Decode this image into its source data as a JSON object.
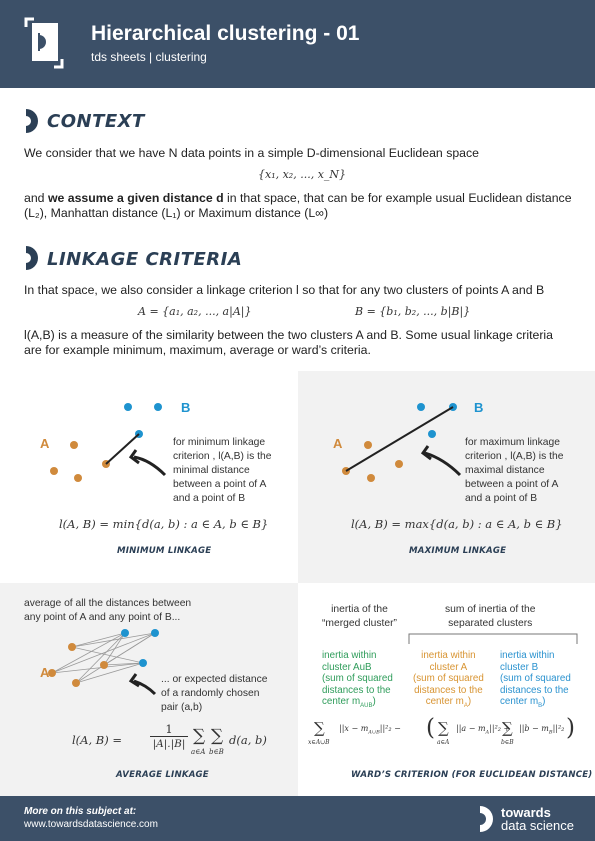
{
  "header": {
    "title": "Hierarchical clustering - 01",
    "subtitle": "tds sheets | clustering"
  },
  "context": {
    "heading": "CONTEXT",
    "line1": "We consider that we have N data points in a simple D-dimensional Euclidean space",
    "formula": "{x₁, x₂, ..., x_N}",
    "line2_pre": "and ",
    "line2_bold": "we assume a given distance d",
    "line2_post": " in that space, that can be for example usual Euclidean distance",
    "line3": "(L₂), Manhattan distance (L₁) or Maximum distance (L∞)"
  },
  "linkage": {
    "heading": "LINKAGE CRITERIA",
    "line1": "In that space, we also consider a linkage criterion l so that for any two clusters of points A and B",
    "set_a": "A = {a₁, a₂, ..., a|A|}",
    "set_b": "B = {b₁, b₂, ..., b|B|}",
    "line2": "l(A,B) is a measure of the similarity between the two clusters A and B. Some usual linkage criteria",
    "line3": "are for example minimum, maximum, average or ward’s criteria."
  },
  "panels": {
    "min": {
      "label_a": "A",
      "label_b": "B",
      "note": [
        "for minimum linkage",
        "criterion , l(A,B) is the",
        "minimal distance",
        "between a point of A",
        "and a point of B"
      ],
      "formula": "l(A, B) = min{d(a, b) : a ∈ A, b ∈ B}",
      "caption": "MINIMUM LINKAGE"
    },
    "max": {
      "label_a": "A",
      "label_b": "B",
      "note": [
        "for maximum linkage",
        "criterion , l(A,B) is the",
        "maximal distance",
        "between a point of A",
        "and a point of B"
      ],
      "formula": "l(A, B) = max{d(a, b) : a ∈ A, b ∈ B}",
      "caption": "MAXIMUM LINKAGE"
    },
    "avg": {
      "label_a": "A",
      "top_note": [
        "average of all the distances between",
        "any point of A and any point of B..."
      ],
      "side_note": [
        "... or expected distance",
        "of a randomly chosen",
        "pair (a,b)"
      ],
      "formula_lhs": "l(A, B) =",
      "formula_num": "1",
      "formula_den": "|A|.|B|",
      "formula_sum1": "∑",
      "formula_sub1": "a∈A",
      "formula_sum2": "∑",
      "formula_sub2": "b∈B",
      "formula_rhs": "d(a, b)",
      "caption": "AVERAGE LINKAGE"
    },
    "ward": {
      "head_left": [
        "inertia of the",
        "“merged cluster”"
      ],
      "head_right": [
        "sum of inertia of the",
        "separated clusters"
      ],
      "green": [
        "inertia within",
        "cluster AuB",
        "(sum of squared",
        "distances to the",
        "center m"
      ],
      "green_sub": "AUB",
      "green_end": ")",
      "orange": [
        "inertia within",
        "cluster A",
        "(sum of squared",
        "distances to the",
        "center m"
      ],
      "orange_sub": "A",
      "orange_end": ")",
      "blue": [
        "inertia within",
        "cluster B",
        "(sum of squared",
        "distances to the",
        "center m"
      ],
      "blue_sub": "B",
      "blue_end": ")",
      "f_sum": "∑",
      "f_sub1": "x∈A∪B",
      "f_term1": "||x − m",
      "f_term1_sub": "A∪B",
      "f_term1_end": "||²₂ −",
      "f_paren_open": "(",
      "f_sub2": "a∈A",
      "f_term2": "||a − m",
      "f_term2_sub": "A",
      "f_term2_end": "||²₂ +",
      "f_sub3": "b∈B",
      "f_term3": "||b − m",
      "f_term3_sub": "B",
      "f_term3_end": "||²₂",
      "f_paren_close": ")",
      "caption": "WARD’S CRITERION (FOR EUCLIDEAN DISTANCE)"
    }
  },
  "footer": {
    "more": "More on this subject at:",
    "url": "www.towardsdatascience.com",
    "brand_1": "towards",
    "brand_2": "data science"
  },
  "colors": {
    "header_bg": "#3c5068",
    "cluster_a": "#d08a3c",
    "cluster_b": "#1e93cf",
    "panel_grey": "#f2f2f2"
  }
}
